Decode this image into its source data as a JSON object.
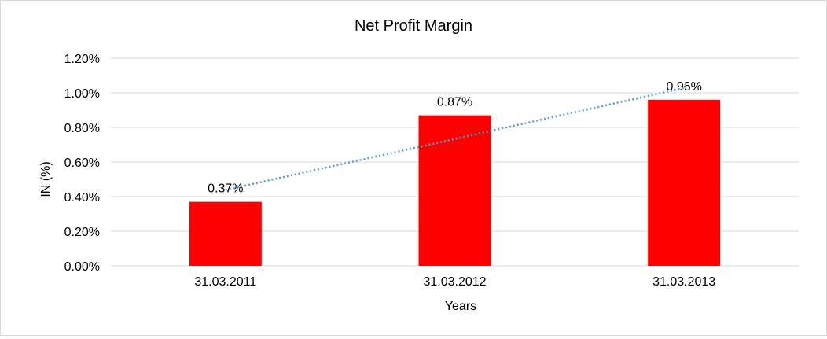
{
  "chart_data": {
    "type": "bar",
    "title": "Net Profit Margin",
    "xlabel": "Years",
    "ylabel": "IN (%)",
    "categories": [
      "31.03.2011",
      "31.03.2012",
      "31.03.2013"
    ],
    "values": [
      0.37,
      0.87,
      0.96
    ],
    "data_labels": [
      "0.37%",
      "0.87%",
      "0.96%"
    ],
    "ylim": [
      0,
      1.2
    ],
    "yticks": [
      "0.00%",
      "0.20%",
      "0.40%",
      "0.60%",
      "0.80%",
      "1.00%",
      "1.20%"
    ],
    "grid": true,
    "trendline": "linear, dotted",
    "colors": {
      "bar": "#ff0000",
      "trendline": "#5b9bd5",
      "grid": "#d9d9d9"
    }
  }
}
